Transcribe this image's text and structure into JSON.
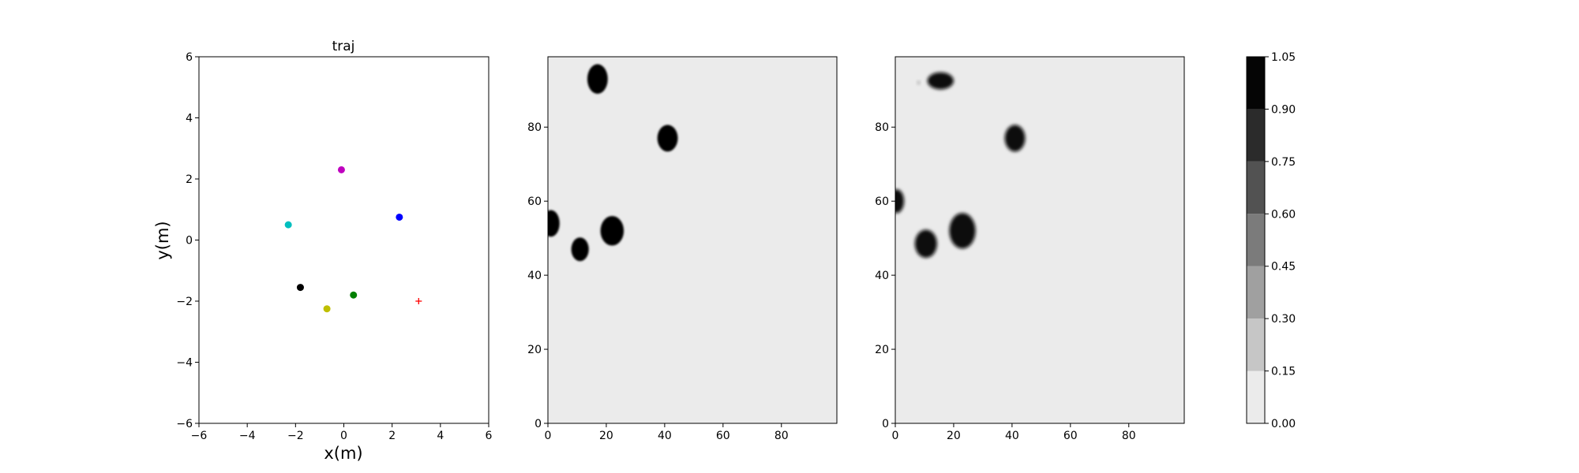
{
  "chart_data": [
    {
      "type": "scatter",
      "title": "traj",
      "xlabel": "x(m)",
      "ylabel": "y(m)",
      "xlim": [
        -6,
        6
      ],
      "ylim": [
        -6,
        6
      ],
      "x_ticks": [
        -6,
        -4,
        -2,
        0,
        2,
        4,
        6
      ],
      "y_ticks": [
        -6,
        -4,
        -2,
        0,
        2,
        4,
        6
      ],
      "grid": false,
      "points": [
        {
          "x": -0.1,
          "y": 2.3,
          "color": "#bf00bf",
          "marker": "circle"
        },
        {
          "x": 2.3,
          "y": 0.75,
          "color": "#0000ff",
          "marker": "circle"
        },
        {
          "x": -2.3,
          "y": 0.5,
          "color": "#00bfbf",
          "marker": "circle"
        },
        {
          "x": -1.8,
          "y": -1.55,
          "color": "#000000",
          "marker": "circle"
        },
        {
          "x": 0.4,
          "y": -1.8,
          "color": "#008000",
          "marker": "circle"
        },
        {
          "x": -0.7,
          "y": -2.25,
          "color": "#bfbf00",
          "marker": "circle"
        },
        {
          "x": 3.1,
          "y": -2.0,
          "color": "#ff0000",
          "marker": "plus"
        }
      ]
    },
    {
      "type": "heatmap",
      "title": "",
      "xlim": [
        0,
        99
      ],
      "ylim": [
        0,
        99
      ],
      "x_ticks": [
        0,
        20,
        40,
        60,
        80
      ],
      "y_ticks": [
        0,
        20,
        40,
        60,
        80
      ],
      "background_value": 0.08,
      "blobs": [
        {
          "x": 17,
          "y": 93,
          "rx": 3.5,
          "ry": 4.0,
          "value": 1.0
        },
        {
          "x": 41,
          "y": 77,
          "rx": 3.5,
          "ry": 3.6,
          "value": 1.0
        },
        {
          "x": 1,
          "y": 54,
          "rx": 3.0,
          "ry": 3.6,
          "value": 1.0
        },
        {
          "x": 11,
          "y": 47,
          "rx": 3.0,
          "ry": 3.2,
          "value": 1.0
        },
        {
          "x": 22,
          "y": 52,
          "rx": 4.0,
          "ry": 4.0,
          "value": 1.0
        }
      ]
    },
    {
      "type": "heatmap",
      "title": "",
      "xlim": [
        0,
        99
      ],
      "ylim": [
        0,
        99
      ],
      "x_ticks": [
        0,
        20,
        40,
        60,
        80
      ],
      "y_ticks": [
        0,
        20,
        40,
        60,
        80
      ],
      "background_value": 0.08,
      "blobs": [
        {
          "x": 15.5,
          "y": 92.5,
          "rx": 4.5,
          "ry": 2.3,
          "value": 0.95
        },
        {
          "x": 41,
          "y": 77,
          "rx": 3.5,
          "ry": 3.6,
          "value": 0.95
        },
        {
          "x": 0.5,
          "y": 60,
          "rx": 2.5,
          "ry": 3.2,
          "value": 0.95
        },
        {
          "x": 10.5,
          "y": 48.5,
          "rx": 3.8,
          "ry": 3.8,
          "value": 0.95
        },
        {
          "x": 23,
          "y": 52,
          "rx": 4.5,
          "ry": 4.8,
          "value": 0.95
        },
        {
          "x": 8,
          "y": 92,
          "rx": 0.5,
          "ry": 0.5,
          "value": 0.3
        }
      ]
    },
    {
      "type": "colorbar",
      "levels": [
        0.0,
        0.15,
        0.3,
        0.45,
        0.6,
        0.75,
        0.9,
        1.05
      ],
      "tick_labels": [
        "0.00",
        "0.15",
        "0.30",
        "0.45",
        "0.60",
        "0.75",
        "0.90",
        "1.05"
      ],
      "colors": [
        "#ebebeb",
        "#c6c6c6",
        "#a0a0a0",
        "#7b7b7b",
        "#525252",
        "#2b2b2b",
        "#050505"
      ]
    }
  ]
}
